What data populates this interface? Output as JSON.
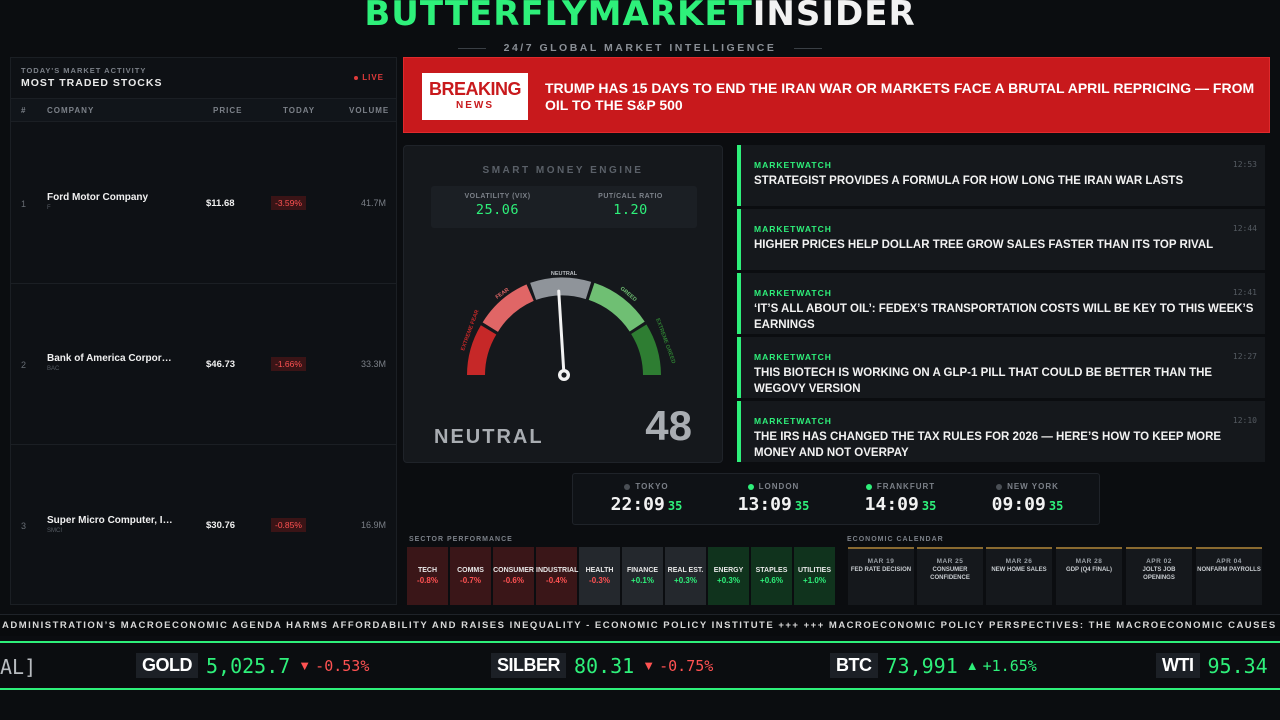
{
  "header": {
    "brand_green": "BUTTERFLYMARKET",
    "brand_white": "INSIDER",
    "tagline": "24/7 GLOBAL MARKET INTELLIGENCE"
  },
  "stocks": {
    "subtitle": "TODAY'S MARKET ACTIVITY",
    "title": "MOST TRADED STOCKS",
    "live": "LIVE",
    "columns": [
      "#",
      "COMPANY",
      "PRICE",
      "TODAY",
      "VOLUME"
    ],
    "rows": [
      {
        "num": "1",
        "name": "Ford Motor Company",
        "ticker": "F",
        "price": "$11.68",
        "change": "-3.59%",
        "volume": "41.7M"
      },
      {
        "num": "2",
        "name": "Bank of America Corpor…",
        "ticker": "BAC",
        "price": "$46.73",
        "change": "-1.66%",
        "volume": "33.3M"
      },
      {
        "num": "3",
        "name": "Super Micro Computer, I…",
        "ticker": "SMCI",
        "price": "$30.76",
        "change": "-0.85%",
        "volume": "16.9M"
      }
    ]
  },
  "breaking": {
    "badge_top": "BREAKING",
    "badge_bottom": "NEWS",
    "headline": "TRUMP HAS 15 DAYS TO END THE IRAN WAR OR MARKETS FACE A BRUTAL APRIL REPRICING — FROM OIL TO THE S&P 500"
  },
  "engine": {
    "title": "SMART MONEY ENGINE",
    "vix_label": "VOLATILITY (VIX)",
    "vix_value": "25.06",
    "pcr_label": "PUT/CALL RATIO",
    "pcr_value": "1.20",
    "gauge_labels": [
      "EXTREME FEAR",
      "FEAR",
      "NEUTRAL",
      "GREED",
      "EXTREME GREED"
    ],
    "state": "NEUTRAL",
    "score": "48",
    "score_value": 48
  },
  "news": [
    {
      "source": "MARKETWATCH",
      "time": "12:53",
      "headline": "STRATEGIST PROVIDES A FORMULA FOR HOW LONG THE IRAN WAR LASTS"
    },
    {
      "source": "MARKETWATCH",
      "time": "12:44",
      "headline": "HIGHER PRICES HELP DOLLAR TREE GROW SALES FASTER THAN ITS TOP RIVAL"
    },
    {
      "source": "MARKETWATCH",
      "time": "12:41",
      "headline": "‘IT’S ALL ABOUT OIL’: FEDEX’S TRANSPORTATION COSTS WILL BE KEY TO THIS WEEK’S EARNINGS"
    },
    {
      "source": "MARKETWATCH",
      "time": "12:27",
      "headline": "THIS BIOTECH IS WORKING ON A GLP-1 PILL THAT COULD BE BETTER THAN THE WEGOVY VERSION"
    },
    {
      "source": "MARKETWATCH",
      "time": "12:10",
      "headline": "THE IRS HAS CHANGED THE TAX RULES FOR 2026 — HERE’S HOW TO KEEP MORE MONEY AND NOT OVERPAY"
    }
  ],
  "clocks": [
    {
      "city": "TOKYO",
      "time": "22:09",
      "sec": "35",
      "open": false
    },
    {
      "city": "LONDON",
      "time": "13:09",
      "sec": "35",
      "open": true
    },
    {
      "city": "FRANKFURT",
      "time": "14:09",
      "sec": "35",
      "open": true
    },
    {
      "city": "NEW YORK",
      "time": "09:09",
      "sec": "35",
      "open": false
    }
  ],
  "sectors": {
    "label": "SECTOR PERFORMANCE",
    "items": [
      {
        "name": "TECH",
        "value": "-0.8%",
        "dir": "down"
      },
      {
        "name": "COMMS",
        "value": "-0.7%",
        "dir": "down"
      },
      {
        "name": "CONSUMER",
        "value": "-0.6%",
        "dir": "down"
      },
      {
        "name": "INDUSTRIAL",
        "value": "-0.4%",
        "dir": "down"
      },
      {
        "name": "HEALTH",
        "value": "-0.3%",
        "dir": "flat"
      },
      {
        "name": "FINANCE",
        "value": "+0.1%",
        "dir": "flat"
      },
      {
        "name": "REAL EST.",
        "value": "+0.3%",
        "dir": "flat"
      },
      {
        "name": "ENERGY",
        "value": "+0.3%",
        "dir": "up"
      },
      {
        "name": "STAPLES",
        "value": "+0.6%",
        "dir": "up"
      },
      {
        "name": "UTILITIES",
        "value": "+1.0%",
        "dir": "up"
      }
    ]
  },
  "calendar": {
    "label": "ECONOMIC CALENDAR",
    "events": [
      {
        "date": "MAR 19",
        "event": "FED RATE DECISION"
      },
      {
        "date": "MAR 25",
        "event": "CONSUMER CONFIDENCE"
      },
      {
        "date": "MAR 26",
        "event": "NEW HOME SALES"
      },
      {
        "date": "MAR 28",
        "event": "GDP (Q4 FINAL)"
      },
      {
        "date": "APR 02",
        "event": "JOLTS JOB OPENINGS"
      },
      {
        "date": "APR 04",
        "event": "NONFARM PAYROLLS"
      }
    ]
  },
  "news_ticker": "ADMINISTRATION’S MACROECONOMIC AGENDA HARMS AFFORDABILITY AND RAISES INEQUALITY - ECONOMIC POLICY INSTITUTE +++ +++ MACROECONOMIC POLICY PERSPECTIVES: THE MACROECONOMIC CAUSES AND CONSEQUENCES OF",
  "price_ticker": {
    "lead": "AL]",
    "items": [
      {
        "symbol": "GOLD",
        "price": "5,025.7",
        "arrow": "▼",
        "change": "-0.53%",
        "dir": "down"
      },
      {
        "symbol": "SILBER",
        "price": "80.31",
        "arrow": "▼",
        "change": "-0.75%",
        "dir": "down"
      },
      {
        "symbol": "BTC",
        "price": "73,991",
        "arrow": "▲",
        "change": "+1.65%",
        "dir": "up"
      },
      {
        "symbol": "WTI",
        "price": "95.34",
        "arrow": "",
        "change": "",
        "dir": "up"
      }
    ]
  },
  "colors": {
    "accent": "#2ef07a",
    "breaking": "#c8191c",
    "down": "#ff5252",
    "background": "#0b0d10"
  }
}
